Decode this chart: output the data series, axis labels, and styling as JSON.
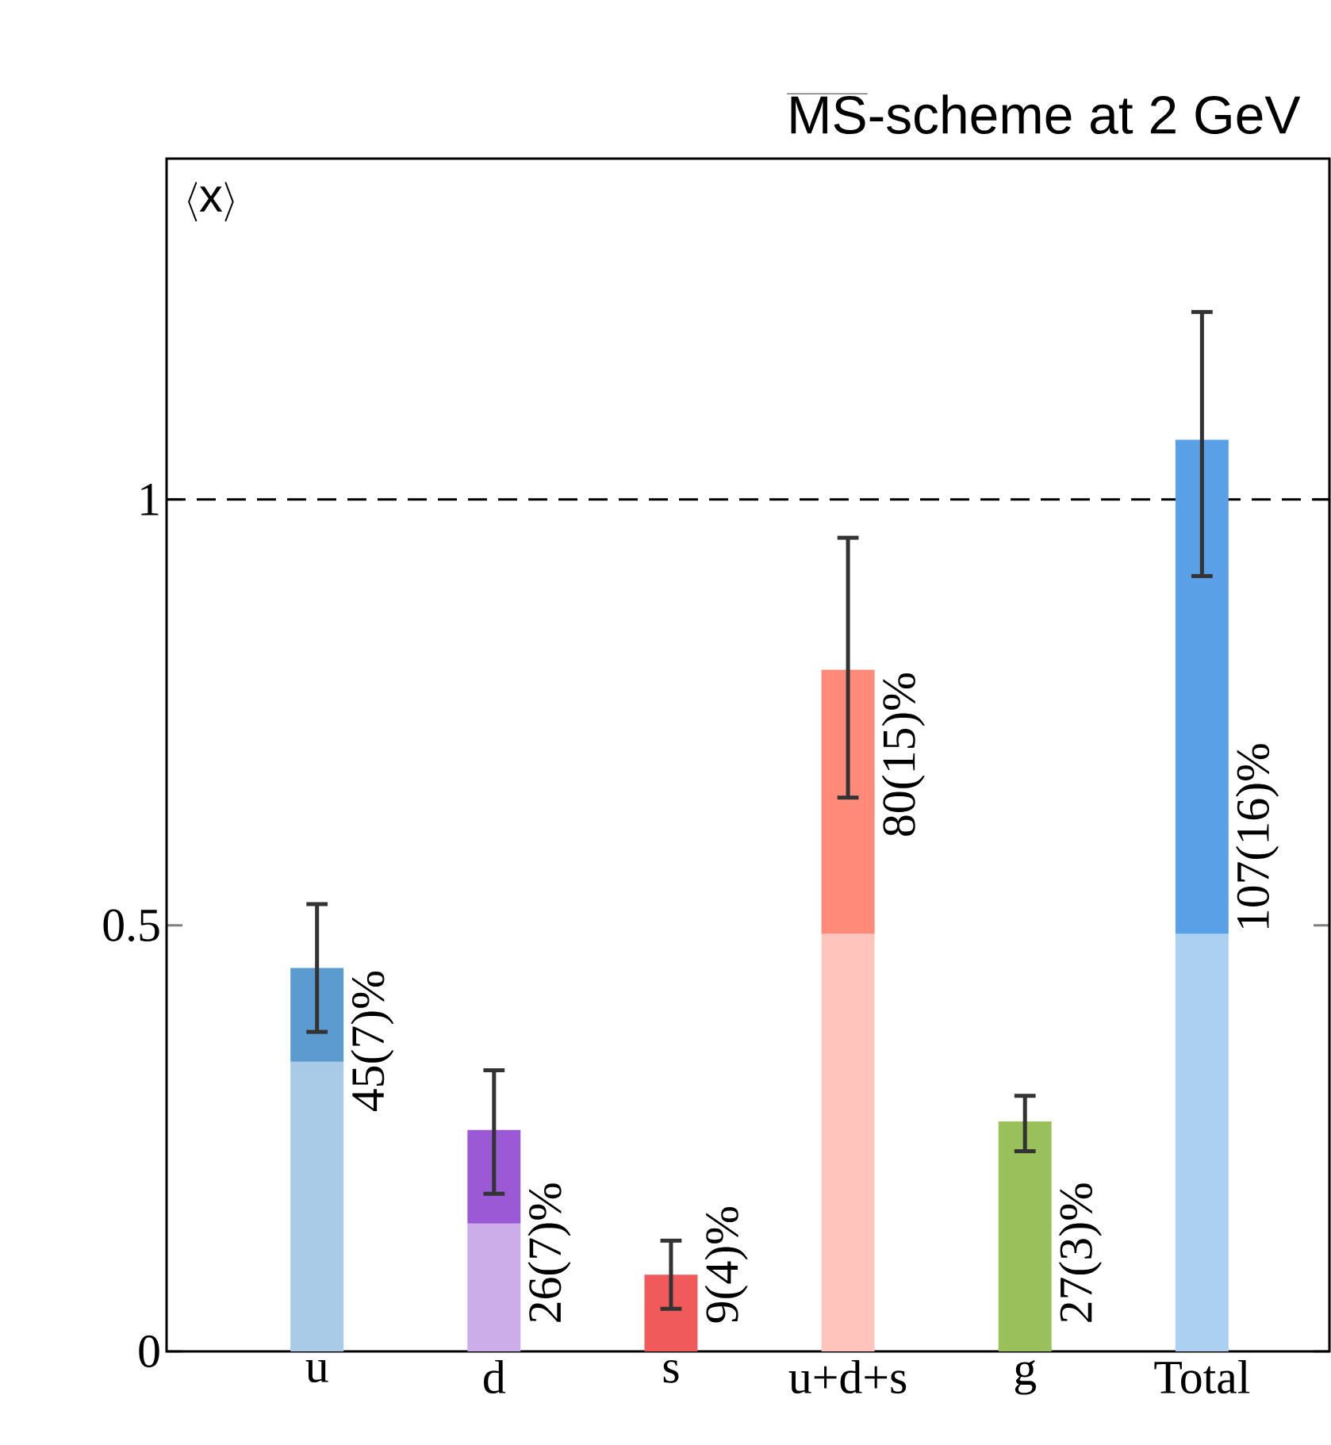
{
  "chart_data": {
    "type": "bar",
    "stacked": true,
    "title": "\\overline{\\mbox{MS}}\\mbox{-scheme at 2 GeV}",
    "ylabel": "\\langle \\mathrm{x}\\rangle",
    "categories": [
      "u",
      "d",
      "s",
      "u+d+s",
      "g",
      "Total"
    ],
    "series": [
      {
        "values": [
          0.34,
          0.15,
          null,
          0.49,
          null,
          0.49
        ],
        "colors": [
          "#a9cbe7",
          "#cdacea",
          "#f7acac",
          "#ffc4bc",
          "#cce0ac",
          "#acd0f2"
        ]
      },
      {
        "values": [
          0.11,
          0.11,
          0.09,
          0.31,
          0.27,
          0.58
        ],
        "colors": [
          "#5b9bd0",
          "#9b59d6",
          "#f05a5a",
          "#ff8a7a",
          "#99c05a",
          "#5aa0e6"
        ],
        "errors": [
          [
            0.375,
            0.525
          ],
          [
            0.185,
            0.33
          ],
          [
            0.05,
            0.13
          ],
          [
            0.65,
            0.955
          ],
          [
            0.235,
            0.3
          ],
          [
            0.91,
            1.22
          ]
        ]
      }
    ],
    "annotations": [
      "45(7)%",
      "26(7)%",
      "9(4)%",
      "80(15)%",
      "27(3)%",
      "107(16)%"
    ],
    "ylim": [
      0,
      1.4
    ],
    "yticks": [
      0,
      0.5,
      1
    ],
    "ref_lines": [
      {
        "axis": "y",
        "value": 1,
        "line_style": "dashed"
      }
    ]
  }
}
